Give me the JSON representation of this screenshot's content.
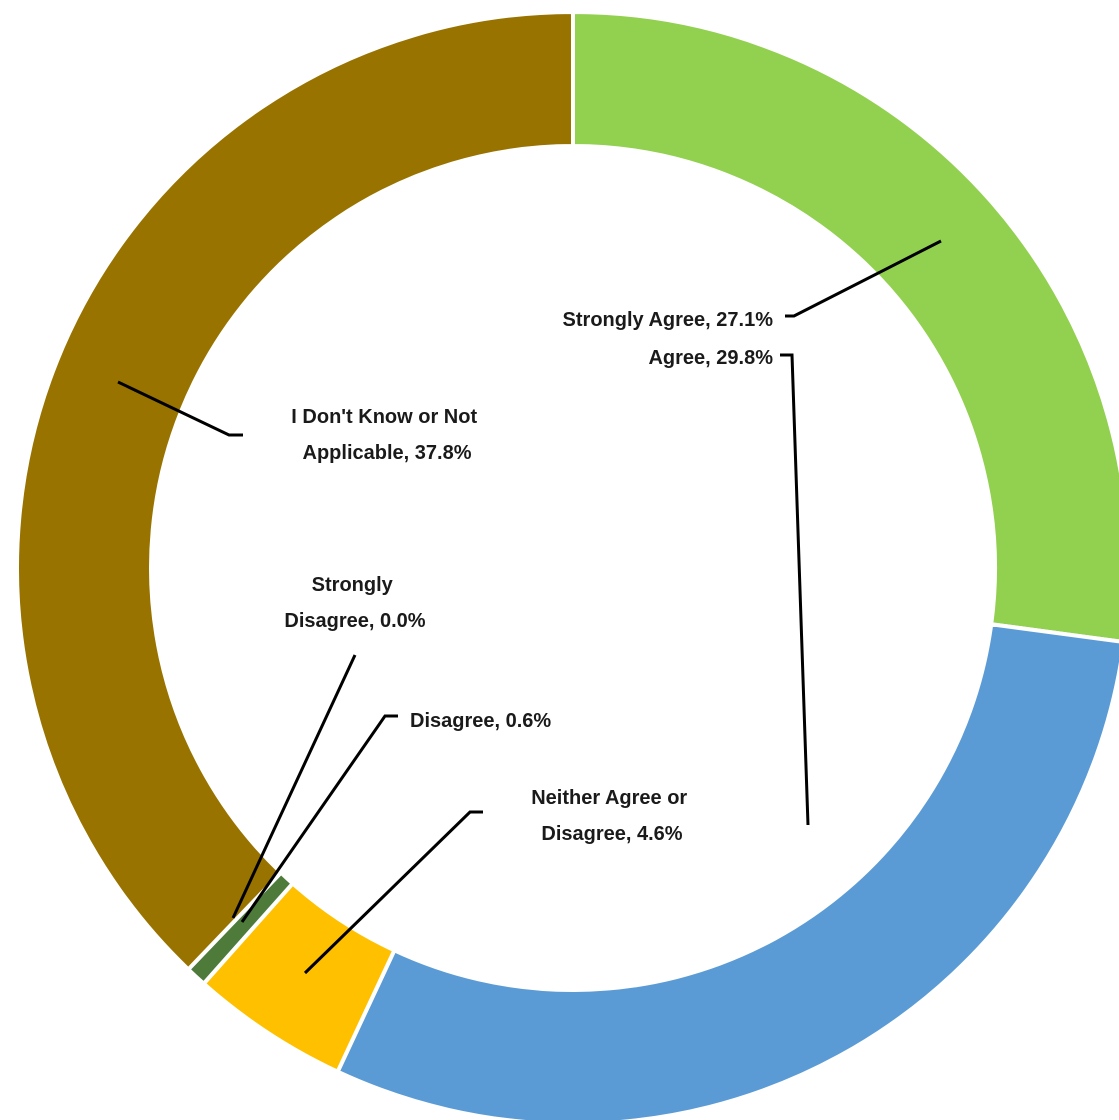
{
  "chart_data": {
    "type": "pie",
    "donut": true,
    "title": "",
    "legend": "none",
    "slices": [
      {
        "name": "Strongly Agree",
        "value": 27.1,
        "label": "Strongly Agree, 27.1%",
        "color": "#92d050"
      },
      {
        "name": "Agree",
        "value": 29.8,
        "label": "Agree, 29.8%",
        "color": "#5b9bd5"
      },
      {
        "name": "Neither Agree or Disagree",
        "value": 4.6,
        "label_lines": [
          "Neither Agree or",
          "Disagree, 4.6%"
        ],
        "color": "#ffc000"
      },
      {
        "name": "Disagree",
        "value": 0.6,
        "label": "Disagree, 0.6%",
        "color": "#4e7a3a"
      },
      {
        "name": "Strongly Disagree",
        "value": 0.0,
        "label_lines": [
          "Strongly",
          "Disagree, 0.0%"
        ],
        "color": "#2f5597"
      },
      {
        "name": "I Don't Know or Not Applicable",
        "value": 37.8,
        "label_lines": [
          "I Don't Know or Not",
          "Applicable, 37.8%"
        ],
        "color": "#997300"
      }
    ]
  }
}
